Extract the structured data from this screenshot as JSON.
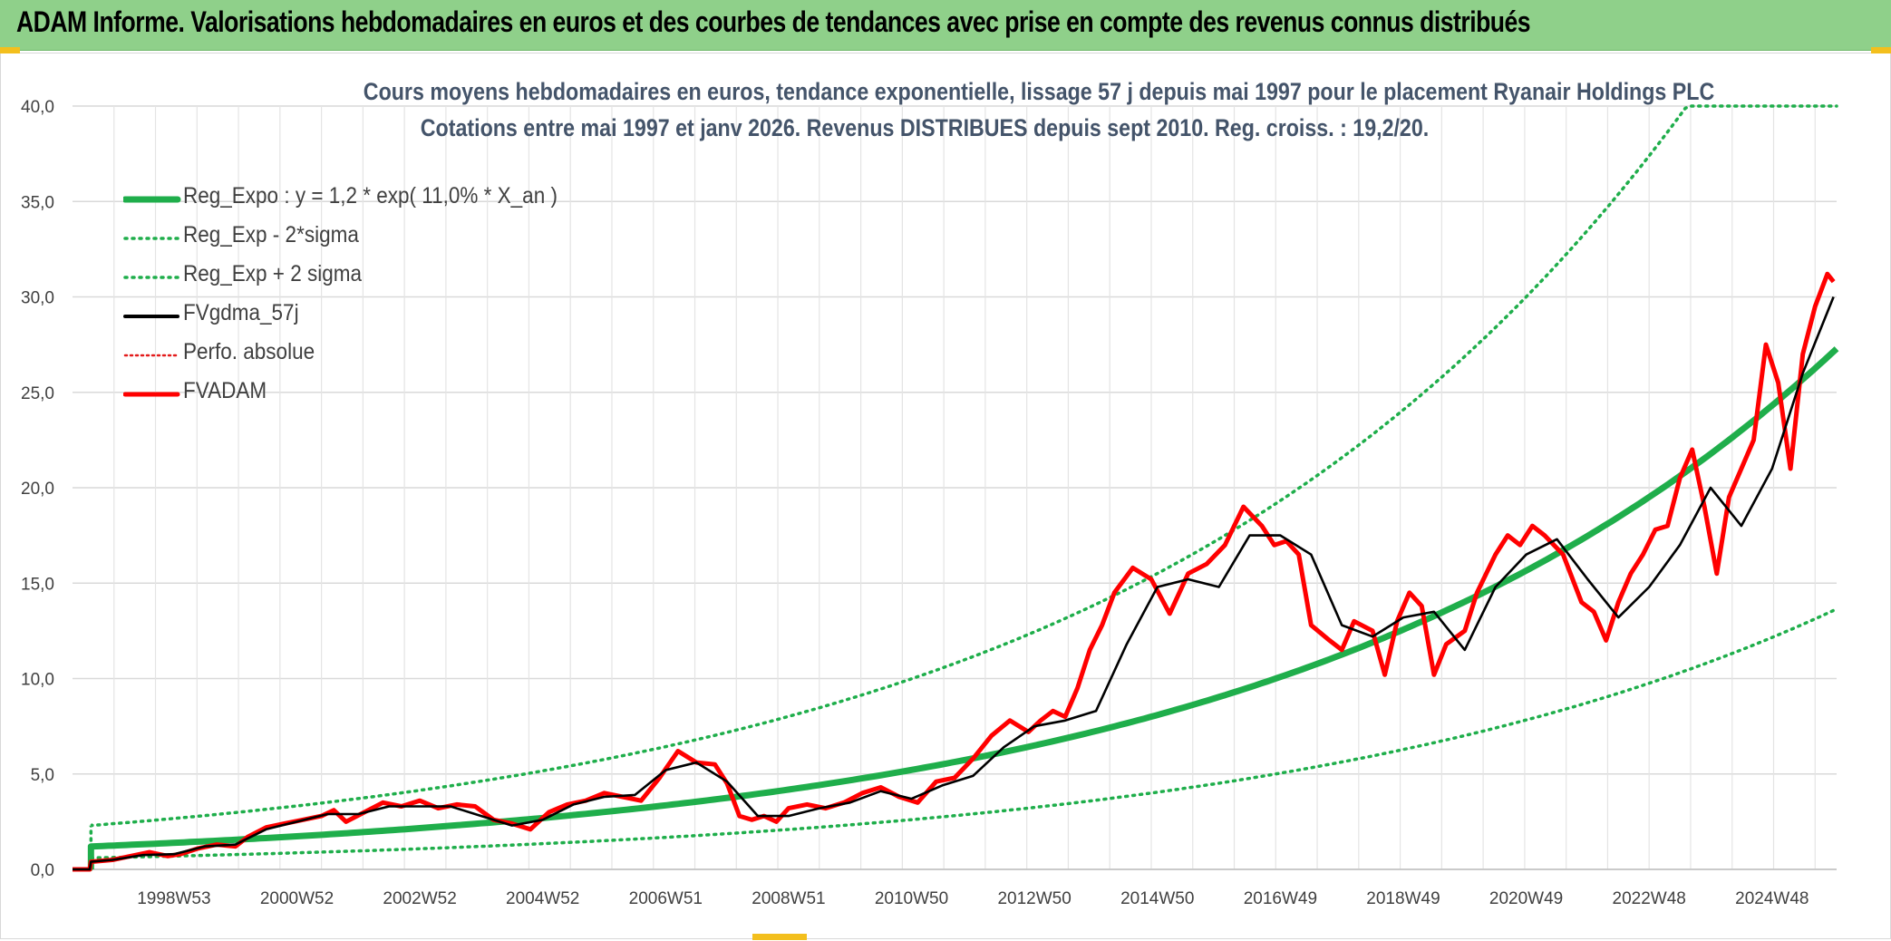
{
  "header": {
    "title": "ADAM Informe. Valorisations hebdomadaires en euros et des courbes de tendances avec prise en compte des revenus connus distribués"
  },
  "colors": {
    "banner": "#8fd08a",
    "reg_expo": "#1fae4b",
    "sigma": "#1fae4b",
    "fvgdma": "#000000",
    "perfo": "#e31b1b",
    "fvadam": "#ff0000",
    "title": "#44546a"
  },
  "chart_data": {
    "type": "line",
    "title_line1": "Cours moyens hebdomadaires en euros, tendance exponentielle, lissage 57 j depuis mai 1997 pour le placement Ryanair Holdings PLC",
    "title_line2": "Cotations entre mai 1997 et janv 2026. Revenus DISTRIBUES depuis sept 2010. Reg. croiss. : 19,2/20.",
    "y_ticks": [
      "0,0",
      "5,0",
      "10,0",
      "15,0",
      "20,0",
      "25,0",
      "30,0",
      "35,0",
      "40,0"
    ],
    "ylim": [
      0,
      40
    ],
    "xlim": [
      1997.35,
      2026.05
    ],
    "x_ticks": [
      {
        "label": "1998W53",
        "x": 1999.0
      },
      {
        "label": "2000W52",
        "x": 2001.0
      },
      {
        "label": "2002W52",
        "x": 2003.0
      },
      {
        "label": "2004W52",
        "x": 2005.0
      },
      {
        "label": "2006W51",
        "x": 2007.0
      },
      {
        "label": "2008W51",
        "x": 2009.0
      },
      {
        "label": "2010W50",
        "x": 2011.0
      },
      {
        "label": "2012W50",
        "x": 2013.0
      },
      {
        "label": "2014W50",
        "x": 2015.0
      },
      {
        "label": "2016W49",
        "x": 2017.0
      },
      {
        "label": "2018W49",
        "x": 2019.0
      },
      {
        "label": "2020W49",
        "x": 2021.0
      },
      {
        "label": "2022W48",
        "x": 2023.0
      },
      {
        "label": "2024W48",
        "x": 2025.0
      }
    ],
    "legend": [
      {
        "key": "reg_expo",
        "label": "Reg_Expo : y = 1,2 * exp( 11,0% *  X_an )",
        "style": "solid-thick"
      },
      {
        "key": "reg_minus",
        "label": "Reg_Exp - 2*sigma",
        "style": "dotted-green"
      },
      {
        "key": "reg_plus",
        "label": "Reg_Exp + 2 sigma",
        "style": "dotted-green"
      },
      {
        "key": "fvgdma",
        "label": "FVgdma_57j",
        "style": "solid-black"
      },
      {
        "key": "perfo",
        "label": "Perfo. absolue",
        "style": "dotted-red"
      },
      {
        "key": "fvadam",
        "label": "FVADAM",
        "style": "solid-red"
      }
    ],
    "regression": {
      "a": 1.2,
      "rate": 0.11,
      "start": 1997.65,
      "lower_start": 0.6,
      "upper_start": 2.3,
      "cap": 40
    },
    "series": [
      {
        "name": "FVADAM",
        "x": [
          1997.35,
          1997.63,
          1997.65,
          1998.0,
          1998.3,
          1998.6,
          1998.9,
          1999.1,
          1999.4,
          1999.7,
          2000.0,
          2000.2,
          2000.5,
          2000.8,
          2001.1,
          2001.4,
          2001.6,
          2001.8,
          2002.1,
          2002.4,
          2002.7,
          2003.0,
          2003.3,
          2003.6,
          2003.9,
          2004.2,
          2004.5,
          2004.8,
          2005.1,
          2005.4,
          2005.7,
          2006.0,
          2006.3,
          2006.6,
          2006.9,
          2007.2,
          2007.5,
          2007.8,
          2008.0,
          2008.2,
          2008.4,
          2008.6,
          2008.8,
          2009.0,
          2009.3,
          2009.6,
          2009.9,
          2010.2,
          2010.5,
          2010.8,
          2011.1,
          2011.4,
          2011.7,
          2012.0,
          2012.3,
          2012.6,
          2012.9,
          2013.1,
          2013.3,
          2013.5,
          2013.7,
          2013.9,
          2014.1,
          2014.3,
          2014.6,
          2014.9,
          2015.2,
          2015.5,
          2015.8,
          2016.1,
          2016.4,
          2016.7,
          2016.9,
          2017.1,
          2017.3,
          2017.5,
          2017.8,
          2018.0,
          2018.2,
          2018.5,
          2018.7,
          2018.9,
          2019.1,
          2019.3,
          2019.5,
          2019.7,
          2020.0,
          2020.2,
          2020.35,
          2020.5,
          2020.7,
          2020.9,
          2021.1,
          2021.3,
          2021.6,
          2021.9,
          2022.1,
          2022.3,
          2022.5,
          2022.7,
          2022.9,
          2023.1,
          2023.3,
          2023.5,
          2023.7,
          2023.9,
          2024.1,
          2024.3,
          2024.5,
          2024.7,
          2024.9,
          2025.1,
          2025.3,
          2025.5,
          2025.7,
          2025.9,
          2026.0
        ],
        "values": [
          0.0,
          0.0,
          0.4,
          0.5,
          0.7,
          0.9,
          0.7,
          0.8,
          1.1,
          1.3,
          1.2,
          1.7,
          2.2,
          2.4,
          2.6,
          2.8,
          3.1,
          2.5,
          3.0,
          3.5,
          3.3,
          3.6,
          3.2,
          3.4,
          3.3,
          2.6,
          2.4,
          2.1,
          3.0,
          3.4,
          3.6,
          4.0,
          3.8,
          3.6,
          4.8,
          6.2,
          5.6,
          5.5,
          4.5,
          2.8,
          2.6,
          2.8,
          2.5,
          3.2,
          3.4,
          3.2,
          3.5,
          4.0,
          4.3,
          3.8,
          3.5,
          4.6,
          4.8,
          5.8,
          7.0,
          7.8,
          7.2,
          7.8,
          8.3,
          8.0,
          9.5,
          11.5,
          12.8,
          14.5,
          15.8,
          15.2,
          13.4,
          15.5,
          16.0,
          17.0,
          19.0,
          18.0,
          17.0,
          17.2,
          16.5,
          12.8,
          12.0,
          11.5,
          13.0,
          12.5,
          10.2,
          13.0,
          14.5,
          13.8,
          10.2,
          11.8,
          12.5,
          14.5,
          15.5,
          16.5,
          17.5,
          17.0,
          18.0,
          17.5,
          16.5,
          14.0,
          13.5,
          12.0,
          14.0,
          15.5,
          16.5,
          17.8,
          18.0,
          20.5,
          22.0,
          19.0,
          15.5,
          19.5,
          21.0,
          22.5,
          27.5,
          25.5,
          21.0,
          27.0,
          29.5,
          31.2,
          30.8
        ]
      },
      {
        "name": "FVgdma_57j",
        "x": [
          1997.35,
          1997.63,
          1997.65,
          1998.0,
          1998.5,
          1999.0,
          1999.5,
          2000.0,
          2000.5,
          2001.0,
          2001.5,
          2002.0,
          2002.5,
          2003.0,
          2003.5,
          2004.0,
          2004.5,
          2005.0,
          2005.5,
          2006.0,
          2006.5,
          2007.0,
          2007.5,
          2008.0,
          2008.5,
          2009.0,
          2009.5,
          2010.0,
          2010.5,
          2011.0,
          2011.5,
          2012.0,
          2012.5,
          2013.0,
          2013.5,
          2014.0,
          2014.5,
          2015.0,
          2015.5,
          2016.0,
          2016.5,
          2017.0,
          2017.5,
          2018.0,
          2018.5,
          2019.0,
          2019.5,
          2020.0,
          2020.5,
          2021.0,
          2021.5,
          2022.0,
          2022.5,
          2023.0,
          2023.5,
          2024.0,
          2024.5,
          2025.0,
          2025.5,
          2026.0
        ],
        "values": [
          0.0,
          0.0,
          0.4,
          0.5,
          0.75,
          0.8,
          1.2,
          1.3,
          2.1,
          2.5,
          2.9,
          2.9,
          3.3,
          3.3,
          3.3,
          2.8,
          2.3,
          2.6,
          3.4,
          3.8,
          3.9,
          5.2,
          5.6,
          4.6,
          2.8,
          2.8,
          3.2,
          3.5,
          4.1,
          3.7,
          4.4,
          4.9,
          6.4,
          7.5,
          7.8,
          8.3,
          11.8,
          14.8,
          15.2,
          14.8,
          17.5,
          17.5,
          16.5,
          12.8,
          12.2,
          13.2,
          13.5,
          11.5,
          14.8,
          16.5,
          17.3,
          15.2,
          13.2,
          14.8,
          17.0,
          20.0,
          18.0,
          21.0,
          26.0,
          30.0
        ]
      }
    ]
  }
}
